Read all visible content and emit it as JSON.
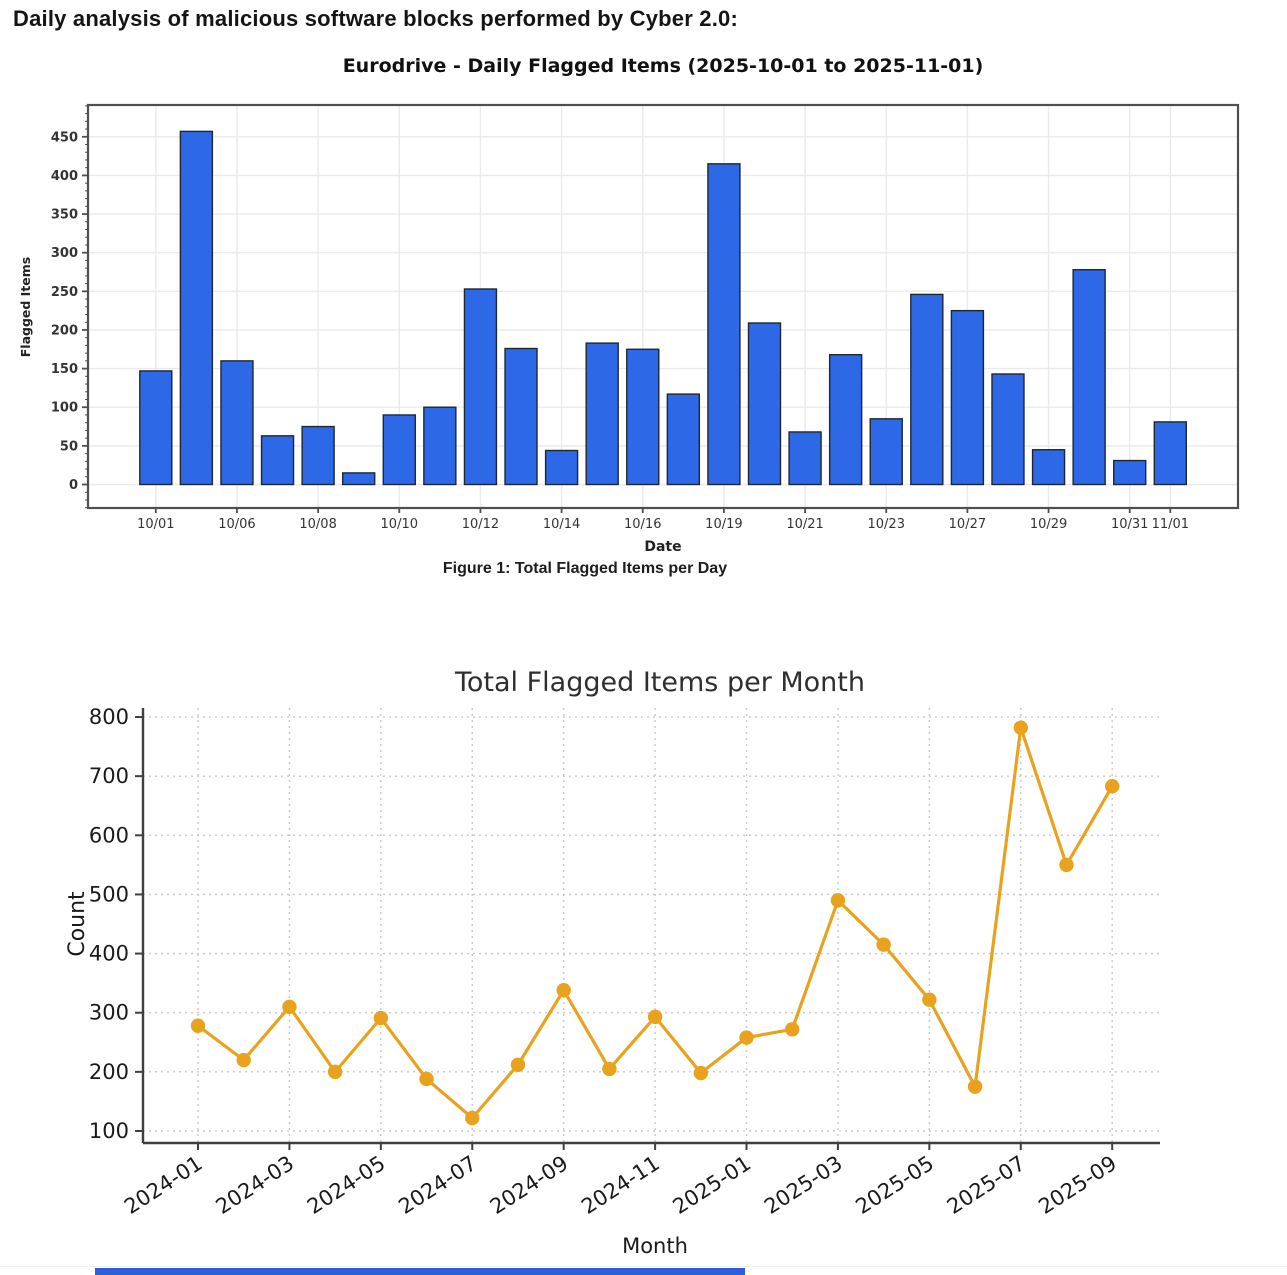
{
  "page": {
    "header": "Daily analysis of malicious software blocks performed by Cyber 2.0:",
    "figure1_caption": "Figure 1: Total Flagged Items per Day"
  },
  "colors": {
    "bar_fill": "#2d68e6",
    "bar_edge": "#1f2733",
    "bar_grid": "#e9e9ef",
    "bar_frame": "#4f4f4f",
    "bar_tick_text": "#333333",
    "line": "#e9a21e",
    "line_grid": "#c8c8c8",
    "line_spine": "#3f3f3f",
    "line_text": "#1a1a1a",
    "bottom_strip": "#2e5ee0"
  },
  "chart_data": [
    {
      "type": "bar",
      "title": "Eurodrive - Daily Flagged Items (2025-10-01 to 2025-11-01)",
      "xlabel": "Date",
      "ylabel": "Flagged Items",
      "ylim": [
        0,
        491
      ],
      "yticks": [
        0,
        50,
        100,
        150,
        200,
        250,
        300,
        350,
        400,
        450
      ],
      "grid": true,
      "values": [
        147,
        457,
        160,
        63,
        75,
        15,
        90,
        100,
        253,
        176,
        44,
        183,
        175,
        117,
        415,
        209,
        68,
        168,
        85,
        246,
        225,
        143,
        45,
        278,
        31,
        81
      ],
      "xticks": [
        {
          "i": 0,
          "label": "10/01"
        },
        {
          "i": 2,
          "label": "10/06"
        },
        {
          "i": 4,
          "label": "10/08"
        },
        {
          "i": 6,
          "label": "10/10"
        },
        {
          "i": 8,
          "label": "10/12"
        },
        {
          "i": 10,
          "label": "10/14"
        },
        {
          "i": 12,
          "label": "10/16"
        },
        {
          "i": 14,
          "label": "10/19"
        },
        {
          "i": 16,
          "label": "10/21"
        },
        {
          "i": 18,
          "label": "10/23"
        },
        {
          "i": 20,
          "label": "10/27"
        },
        {
          "i": 22,
          "label": "10/29"
        },
        {
          "i": 24,
          "label": "10/31"
        },
        {
          "i": 25,
          "label": "11/01"
        }
      ]
    },
    {
      "type": "line",
      "title": "Total Flagged Items per Month",
      "xlabel": "Month",
      "ylabel": "Count",
      "ylim": [
        80,
        812
      ],
      "yticks": [
        100,
        200,
        300,
        400,
        500,
        600,
        700,
        800
      ],
      "grid": true,
      "legend_position": "none",
      "categories": [
        "2024-01",
        "2024-02",
        "2024-03",
        "2024-04",
        "2024-05",
        "2024-06",
        "2024-07",
        "2024-08",
        "2024-09",
        "2024-10",
        "2024-11",
        "2024-12",
        "2025-01",
        "2025-02",
        "2025-03",
        "2025-04",
        "2025-05",
        "2025-06",
        "2025-07",
        "2025-08",
        "2025-09"
      ],
      "values": [
        278,
        220,
        310,
        200,
        291,
        188,
        122,
        212,
        338,
        205,
        293,
        198,
        258,
        272,
        490,
        415,
        322,
        175,
        782,
        550,
        683
      ],
      "xtick_every": 2
    }
  ]
}
